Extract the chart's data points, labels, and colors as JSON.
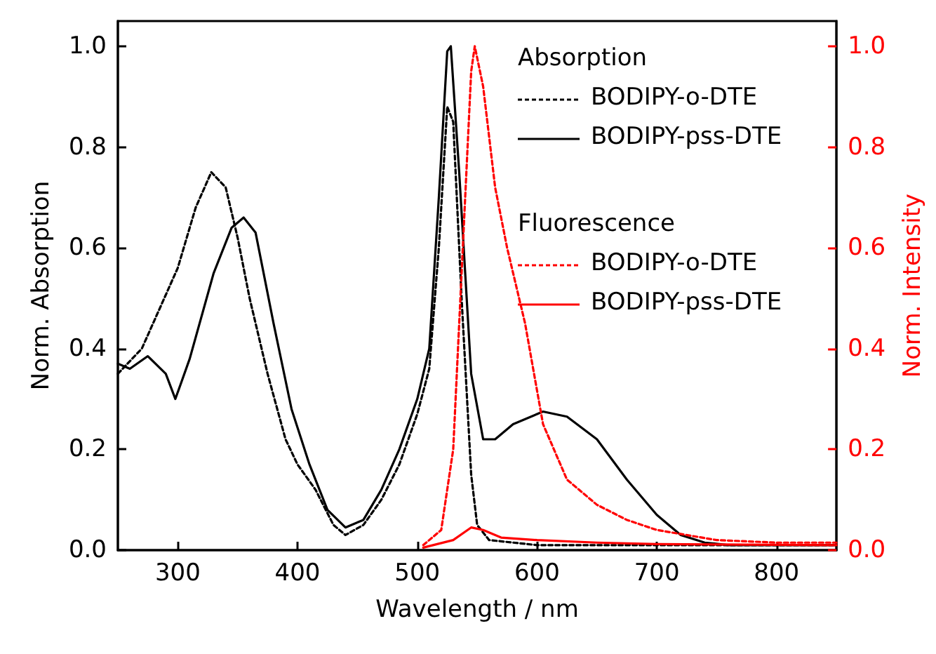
{
  "chart_data": {
    "type": "line",
    "xlabel": "Wavelength / nm",
    "ylabel": "Norm. Absorption",
    "y2label": "Norm. Intensity",
    "xlim": [
      250,
      850
    ],
    "xticks": [
      300,
      400,
      500,
      600,
      700,
      800
    ],
    "ylim": [
      0,
      1.05
    ],
    "yticks": [
      {
        "value": 0,
        "label": "0.0"
      },
      {
        "value": 0.2,
        "label": "0.2"
      },
      {
        "value": 0.4,
        "label": "0.4"
      },
      {
        "value": 0.6,
        "label": "0.6"
      },
      {
        "value": 0.8,
        "label": "0.8"
      },
      {
        "value": 1,
        "label": "1.0"
      }
    ],
    "y2lim": [
      0,
      1.05
    ],
    "y2ticks": [
      {
        "value": 0,
        "label": "0.0"
      },
      {
        "value": 0.2,
        "label": "0.2"
      },
      {
        "value": 0.4,
        "label": "0.4"
      },
      {
        "value": 0.6,
        "label": "0.6"
      },
      {
        "value": 0.8,
        "label": "0.8"
      },
      {
        "value": 1,
        "label": "1.0"
      }
    ],
    "grid": false,
    "marker": "none",
    "legend": "top right",
    "annotations": [
      "Absorption",
      "Fluorescence"
    ],
    "series": [
      {
        "name": "BODIPY-o-DTE",
        "color": "#000000",
        "line_style": "dotted",
        "x": [
          250,
          270,
          285,
          300,
          315,
          328,
          340,
          350,
          360,
          375,
          390,
          400,
          415,
          430,
          440,
          455,
          470,
          485,
          500,
          510,
          518,
          525,
          530,
          537,
          545,
          550,
          560,
          600,
          700,
          850
        ],
        "values": [
          0.35,
          0.4,
          0.48,
          0.56,
          0.68,
          0.75,
          0.72,
          0.62,
          0.5,
          0.35,
          0.22,
          0.17,
          0.12,
          0.05,
          0.03,
          0.05,
          0.1,
          0.17,
          0.27,
          0.36,
          0.6,
          0.88,
          0.85,
          0.5,
          0.15,
          0.05,
          0.02,
          0.01,
          0.01,
          0.01
        ]
      },
      {
        "name": "BODIPY-pss-DTE",
        "color": "#000000",
        "line_style": "solid",
        "x": [
          250,
          260,
          275,
          290,
          298,
          310,
          330,
          345,
          355,
          365,
          380,
          395,
          410,
          425,
          440,
          455,
          470,
          485,
          500,
          510,
          518,
          525,
          528,
          535,
          545,
          555,
          565,
          580,
          605,
          625,
          650,
          675,
          700,
          720,
          740,
          760,
          850
        ],
        "values": [
          0.37,
          0.36,
          0.385,
          0.35,
          0.3,
          0.38,
          0.55,
          0.64,
          0.66,
          0.63,
          0.45,
          0.28,
          0.17,
          0.08,
          0.045,
          0.06,
          0.12,
          0.2,
          0.3,
          0.4,
          0.7,
          0.99,
          1.0,
          0.75,
          0.35,
          0.22,
          0.22,
          0.25,
          0.275,
          0.265,
          0.22,
          0.14,
          0.07,
          0.03,
          0.015,
          0.01,
          0.01
        ]
      },
      {
        "name": "BODIPY-o-DTE",
        "color": "#ff0000",
        "line_style": "dotted",
        "axis": "y2",
        "x": [
          505,
          520,
          530,
          538,
          545,
          548,
          555,
          565,
          575,
          590,
          605,
          625,
          650,
          675,
          700,
          750,
          800,
          850
        ],
        "values": [
          0.01,
          0.04,
          0.2,
          0.6,
          0.95,
          1.0,
          0.92,
          0.72,
          0.6,
          0.45,
          0.25,
          0.14,
          0.09,
          0.06,
          0.04,
          0.02,
          0.015,
          0.015
        ]
      },
      {
        "name": "BODIPY-pss-DTE",
        "color": "#ff0000",
        "line_style": "solid",
        "axis": "y2",
        "x": [
          505,
          530,
          545,
          555,
          570,
          600,
          650,
          700,
          850
        ],
        "values": [
          0.005,
          0.02,
          0.045,
          0.04,
          0.025,
          0.02,
          0.015,
          0.012,
          0.01
        ]
      }
    ]
  }
}
